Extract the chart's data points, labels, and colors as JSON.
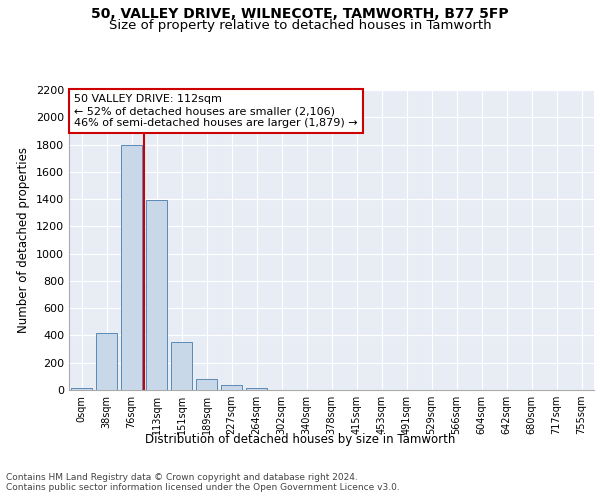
{
  "title": "50, VALLEY DRIVE, WILNECOTE, TAMWORTH, B77 5FP",
  "subtitle": "Size of property relative to detached houses in Tamworth",
  "xlabel": "Distribution of detached houses by size in Tamworth",
  "ylabel": "Number of detached properties",
  "bar_labels": [
    "0sqm",
    "38sqm",
    "76sqm",
    "113sqm",
    "151sqm",
    "189sqm",
    "227sqm",
    "264sqm",
    "302sqm",
    "340sqm",
    "378sqm",
    "415sqm",
    "453sqm",
    "491sqm",
    "529sqm",
    "566sqm",
    "604sqm",
    "642sqm",
    "680sqm",
    "717sqm",
    "755sqm"
  ],
  "bar_values": [
    15,
    420,
    1800,
    1390,
    350,
    80,
    35,
    18,
    0,
    0,
    0,
    0,
    0,
    0,
    0,
    0,
    0,
    0,
    0,
    0,
    0
  ],
  "bar_color": "#c8d8e8",
  "bar_edge_color": "#5a8ab5",
  "vline_color": "#cc0000",
  "annotation_text": "50 VALLEY DRIVE: 112sqm\n← 52% of detached houses are smaller (2,106)\n46% of semi-detached houses are larger (1,879) →",
  "annotation_box_color": "#ffffff",
  "annotation_box_edge": "#cc0000",
  "ylim": [
    0,
    2200
  ],
  "yticks": [
    0,
    200,
    400,
    600,
    800,
    1000,
    1200,
    1400,
    1600,
    1800,
    2000,
    2200
  ],
  "footer_line1": "Contains HM Land Registry data © Crown copyright and database right 2024.",
  "footer_line2": "Contains public sector information licensed under the Open Government Licence v3.0.",
  "title_fontsize": 10,
  "subtitle_fontsize": 9.5,
  "plot_bg_color": "#e8edf5"
}
